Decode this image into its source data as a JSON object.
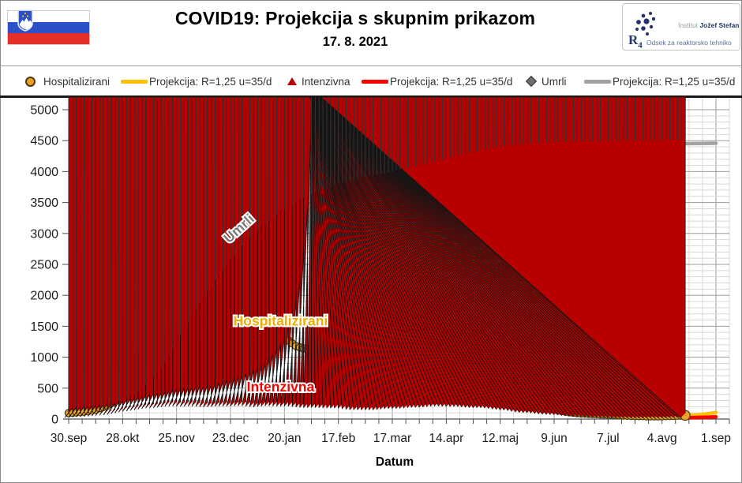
{
  "header": {
    "title": "COVID19: Projekcija s skupnim prikazom",
    "date": "17. 8. 2021",
    "flag_name": "slovenia-flag",
    "logo": {
      "institute_light": "Institut",
      "institute_bold": "Jožef Stefan",
      "dept_glyph_r": "R",
      "dept_glyph_4": "4",
      "dept_text": "Odsek za reaktorsko tehniko"
    }
  },
  "legend": {
    "items": [
      {
        "label": "Hospitalizirani",
        "marker": "circle",
        "color": "#E8A22B"
      },
      {
        "label": "Projekcija: R=1,25 u=35/d",
        "marker": "line",
        "color": "#FFC000"
      },
      {
        "label": "Intenzivna",
        "marker": "triangle",
        "color": "#B80000"
      },
      {
        "label": "Projekcija: R=1,25 u=35/d",
        "marker": "line",
        "color": "#FF0000"
      },
      {
        "label": "Umrli",
        "marker": "diamond",
        "color": "#6E6E6E"
      },
      {
        "label": "Projekcija: R=1,25 u=35/d",
        "marker": "line",
        "color": "#A3A3A3"
      }
    ]
  },
  "chart_data": {
    "type": "scatter",
    "title": "COVID19: Projekcija s skupnim prikazom",
    "subtitle": "17. 8. 2021",
    "xlabel": "Datum",
    "ylabel": "",
    "ylim": [
      0,
      5100
    ],
    "ytick_step": 500,
    "y_minor_step": 100,
    "x_minor_step_days": 7,
    "x_tick_labels": [
      "30.sep",
      "28.okt",
      "25.nov",
      "23.dec",
      "20.jan",
      "17.feb",
      "17.mar",
      "14.apr",
      "12.maj",
      "9.jun",
      "7.jul",
      "4.avg",
      "1.sep"
    ],
    "x_tick_days": [
      0,
      28,
      56,
      84,
      112,
      140,
      168,
      196,
      224,
      252,
      280,
      308,
      336
    ],
    "grid": "major+minor",
    "legend_position": "top",
    "series": [
      {
        "name": "Hospitalizirani",
        "kind": "markers",
        "marker": "circle",
        "color": "#E9A430",
        "outline": "#52400F",
        "points": [
          [
            0,
            95
          ],
          [
            7,
            115
          ],
          [
            14,
            150
          ],
          [
            21,
            230
          ],
          [
            28,
            430
          ],
          [
            35,
            780
          ],
          [
            42,
            1070
          ],
          [
            49,
            1215
          ],
          [
            56,
            1290
          ],
          [
            63,
            1330
          ],
          [
            70,
            1270
          ],
          [
            77,
            1240
          ],
          [
            84,
            1290
          ],
          [
            91,
            1310
          ],
          [
            98,
            1260
          ],
          [
            105,
            1320
          ],
          [
            112,
            1290
          ],
          [
            119,
            1180
          ],
          [
            126,
            1130
          ],
          [
            133,
            1170
          ],
          [
            140,
            1090
          ],
          [
            147,
            940
          ],
          [
            154,
            760
          ],
          [
            161,
            610
          ],
          [
            168,
            540
          ],
          [
            175,
            505
          ],
          [
            182,
            530
          ],
          [
            189,
            600
          ],
          [
            196,
            640
          ],
          [
            203,
            655
          ],
          [
            210,
            620
          ],
          [
            217,
            560
          ],
          [
            224,
            500
          ],
          [
            231,
            400
          ],
          [
            238,
            300
          ],
          [
            245,
            220
          ],
          [
            252,
            150
          ],
          [
            259,
            115
          ],
          [
            266,
            90
          ],
          [
            273,
            80
          ],
          [
            280,
            70
          ],
          [
            287,
            60
          ],
          [
            294,
            50
          ],
          [
            301,
            45
          ],
          [
            308,
            45
          ],
          [
            315,
            52
          ],
          [
            320,
            60
          ]
        ]
      },
      {
        "name": "Intenzivna",
        "kind": "markers",
        "marker": "triangle",
        "color": "#B80000",
        "outline": "#151515",
        "points": [
          [
            0,
            25
          ],
          [
            7,
            35
          ],
          [
            14,
            50
          ],
          [
            21,
            70
          ],
          [
            28,
            105
          ],
          [
            35,
            145
          ],
          [
            42,
            175
          ],
          [
            49,
            195
          ],
          [
            56,
            205
          ],
          [
            63,
            205
          ],
          [
            70,
            200
          ],
          [
            77,
            200
          ],
          [
            84,
            205
          ],
          [
            91,
            210
          ],
          [
            98,
            200
          ],
          [
            105,
            210
          ],
          [
            112,
            205
          ],
          [
            119,
            195
          ],
          [
            126,
            185
          ],
          [
            133,
            180
          ],
          [
            140,
            170
          ],
          [
            147,
            155
          ],
          [
            154,
            145
          ],
          [
            161,
            150
          ],
          [
            168,
            160
          ],
          [
            175,
            175
          ],
          [
            182,
            190
          ],
          [
            189,
            200
          ],
          [
            196,
            205
          ],
          [
            203,
            200
          ],
          [
            210,
            190
          ],
          [
            217,
            175
          ],
          [
            224,
            155
          ],
          [
            231,
            130
          ],
          [
            238,
            105
          ],
          [
            245,
            85
          ],
          [
            252,
            70
          ],
          [
            259,
            55
          ],
          [
            266,
            40
          ],
          [
            273,
            30
          ],
          [
            280,
            25
          ],
          [
            287,
            20
          ],
          [
            294,
            18
          ],
          [
            301,
            18
          ],
          [
            308,
            20
          ],
          [
            315,
            25
          ],
          [
            320,
            30
          ]
        ]
      },
      {
        "name": "Umrli",
        "kind": "markers",
        "marker": "diamond",
        "color": "#6E6E6E",
        "outline": "#323232",
        "points": [
          [
            0,
            145
          ],
          [
            7,
            155
          ],
          [
            14,
            170
          ],
          [
            21,
            200
          ],
          [
            28,
            255
          ],
          [
            35,
            360
          ],
          [
            42,
            530
          ],
          [
            49,
            810
          ],
          [
            56,
            1180
          ],
          [
            63,
            1580
          ],
          [
            70,
            1920
          ],
          [
            77,
            2230
          ],
          [
            84,
            2520
          ],
          [
            91,
            2780
          ],
          [
            98,
            3000
          ],
          [
            105,
            3180
          ],
          [
            112,
            3330
          ],
          [
            119,
            3460
          ],
          [
            126,
            3570
          ],
          [
            133,
            3665
          ],
          [
            140,
            3740
          ],
          [
            147,
            3800
          ],
          [
            154,
            3855
          ],
          [
            161,
            3900
          ],
          [
            168,
            3945
          ],
          [
            175,
            3990
          ],
          [
            182,
            4040
          ],
          [
            189,
            4095
          ],
          [
            196,
            4150
          ],
          [
            203,
            4205
          ],
          [
            210,
            4255
          ],
          [
            217,
            4300
          ],
          [
            224,
            4340
          ],
          [
            231,
            4370
          ],
          [
            238,
            4392
          ],
          [
            245,
            4405
          ],
          [
            252,
            4413
          ],
          [
            259,
            4419
          ],
          [
            266,
            4424
          ],
          [
            273,
            4428
          ],
          [
            280,
            4432
          ],
          [
            287,
            4436
          ],
          [
            294,
            4439
          ],
          [
            301,
            4442
          ],
          [
            308,
            4445
          ],
          [
            315,
            4447
          ],
          [
            320,
            4449
          ]
        ]
      },
      {
        "name": "Projekcija: R=1,25 u=35/d",
        "kind": "line",
        "for": "Hospitalizirani",
        "color": "#FFC000",
        "width": 4.5,
        "points": [
          [
            320,
            58
          ],
          [
            328,
            72
          ],
          [
            336,
            105
          ]
        ]
      },
      {
        "name": "Projekcija: R=1,25 u=35/d",
        "kind": "line",
        "for": "Intenzivna",
        "color": "#FF0000",
        "width": 4.5,
        "points": [
          [
            320,
            18
          ],
          [
            336,
            36
          ]
        ]
      },
      {
        "name": "Projekcija: R=1,25 u=35/d",
        "kind": "line",
        "for": "Umrli",
        "color": "#A3A3A3",
        "width": 4.5,
        "points": [
          [
            306,
            4446
          ],
          [
            336,
            4458
          ]
        ]
      }
    ],
    "annotations": [
      {
        "text": "Umrli",
        "x_day": 90,
        "value": 3025,
        "rotate": -42,
        "color": "#7a7a7a"
      },
      {
        "text": "Hospitalizirani",
        "x_day": 110,
        "value": 1510,
        "rotate": 0,
        "color": "#F0AF00"
      },
      {
        "text": "Intenzivna",
        "x_day": 110,
        "value": 446,
        "rotate": 0,
        "color": "#FA0000"
      }
    ]
  }
}
